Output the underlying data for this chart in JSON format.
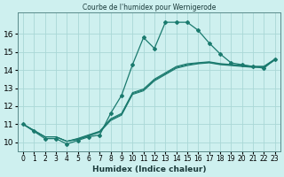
{
  "title": "Courbe de l'humidex pour Wernigerode",
  "xlabel": "Humidex (Indice chaleur)",
  "bg_color": "#cef0ef",
  "grid_color": "#aad8d6",
  "line_color": "#1a7a6e",
  "xlim": [
    -0.5,
    23.5
  ],
  "ylim": [
    9.5,
    17.2
  ],
  "xticks": [
    0,
    1,
    2,
    3,
    4,
    5,
    6,
    7,
    8,
    9,
    10,
    11,
    12,
    13,
    14,
    15,
    16,
    17,
    18,
    19,
    20,
    21,
    22,
    23
  ],
  "yticks": [
    10,
    11,
    12,
    13,
    14,
    15,
    16
  ],
  "line_main": {
    "x": [
      0,
      1,
      2,
      3,
      4,
      5,
      6,
      7,
      8,
      9,
      10,
      11,
      12,
      13,
      14,
      15,
      16,
      17,
      18,
      19,
      20,
      21,
      22,
      23
    ],
    "y": [
      11.0,
      10.6,
      10.2,
      10.2,
      9.9,
      10.1,
      10.3,
      10.4,
      11.6,
      12.6,
      14.3,
      15.8,
      15.2,
      16.65,
      16.65,
      16.65,
      16.2,
      15.5,
      14.9,
      14.4,
      14.3,
      14.2,
      14.1,
      14.6
    ]
  },
  "line_diag1": {
    "x": [
      0,
      1,
      2,
      3,
      4,
      5,
      6,
      7,
      8,
      9,
      10,
      11,
      12,
      13,
      14,
      15,
      16,
      17,
      18,
      19,
      20,
      21,
      22,
      23
    ],
    "y": [
      11.0,
      10.65,
      10.3,
      10.3,
      10.05,
      10.15,
      10.35,
      10.55,
      11.2,
      11.5,
      12.65,
      12.85,
      13.4,
      13.75,
      14.1,
      14.25,
      14.35,
      14.4,
      14.3,
      14.25,
      14.2,
      14.15,
      14.15,
      14.55
    ]
  },
  "line_diag2": {
    "x": [
      0,
      1,
      2,
      3,
      4,
      5,
      6,
      7,
      8,
      9,
      10,
      11,
      12,
      13,
      14,
      15,
      16,
      17,
      18,
      19,
      20,
      21,
      22,
      23
    ],
    "y": [
      11.0,
      10.65,
      10.3,
      10.3,
      10.05,
      10.18,
      10.38,
      10.58,
      11.25,
      11.55,
      12.7,
      12.9,
      13.45,
      13.8,
      14.15,
      14.3,
      14.38,
      14.43,
      14.33,
      14.28,
      14.23,
      14.18,
      14.18,
      14.58
    ]
  },
  "line_diag3": {
    "x": [
      0,
      1,
      2,
      3,
      4,
      5,
      6,
      7,
      8,
      9,
      10,
      11,
      12,
      13,
      14,
      15,
      16,
      17,
      18,
      19,
      20,
      21,
      22,
      23
    ],
    "y": [
      11.0,
      10.65,
      10.3,
      10.3,
      10.05,
      10.21,
      10.41,
      10.61,
      11.3,
      11.6,
      12.75,
      12.95,
      13.5,
      13.85,
      14.2,
      14.35,
      14.41,
      14.46,
      14.36,
      14.31,
      14.26,
      14.21,
      14.21,
      14.61
    ]
  }
}
